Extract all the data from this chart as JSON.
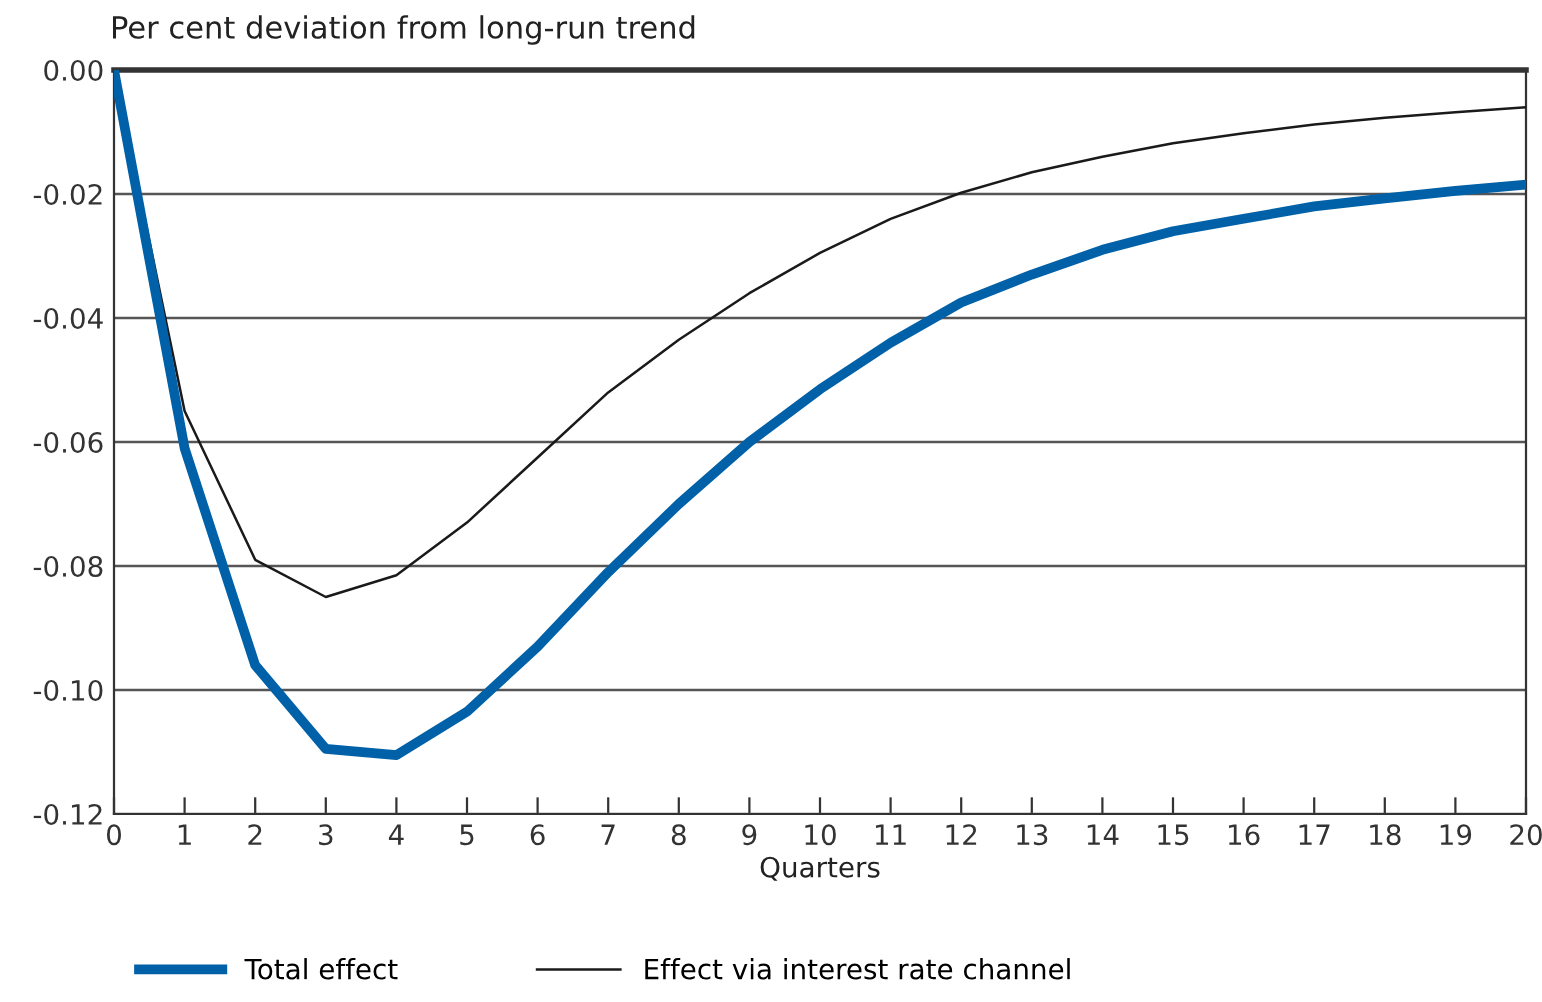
{
  "chart_data": {
    "type": "line",
    "subtitle": "Per cent deviation from long-run trend",
    "xlabel": "Quarters",
    "x": [
      0,
      1,
      2,
      3,
      4,
      5,
      6,
      7,
      8,
      9,
      10,
      11,
      12,
      13,
      14,
      15,
      16,
      17,
      18,
      19,
      20
    ],
    "series": [
      {
        "name": "Total effect",
        "color": "#0061a8",
        "values": [
          0,
          -0.061,
          -0.096,
          -0.1095,
          -0.1105,
          -0.1035,
          -0.093,
          -0.081,
          -0.07,
          -0.06,
          -0.0515,
          -0.044,
          -0.0375,
          -0.033,
          -0.029,
          -0.026,
          -0.024,
          -0.022,
          -0.0207,
          -0.0195,
          -0.0185
        ]
      },
      {
        "name": "Effect via interest rate channel",
        "color": "#1a1a1a",
        "values": [
          0,
          -0.055,
          -0.079,
          -0.085,
          -0.0815,
          -0.073,
          -0.0625,
          -0.052,
          -0.0435,
          -0.036,
          -0.0295,
          -0.024,
          -0.0198,
          -0.0165,
          -0.014,
          -0.0118,
          -0.0102,
          -0.0088,
          -0.0077,
          -0.0068,
          -0.006
        ]
      }
    ],
    "xlim": [
      0,
      20
    ],
    "xticks": [
      0,
      1,
      2,
      3,
      4,
      5,
      6,
      7,
      8,
      9,
      10,
      11,
      12,
      13,
      14,
      15,
      16,
      17,
      18,
      19,
      20
    ],
    "ylim": [
      -0.12,
      0
    ],
    "yticks": [
      {
        "value": -0.12,
        "label": "-0.12"
      },
      {
        "value": -0.1,
        "label": "-0.10"
      },
      {
        "value": -0.08,
        "label": "-0.08"
      },
      {
        "value": -0.06,
        "label": "-0.06"
      },
      {
        "value": -0.04,
        "label": "-0.04"
      },
      {
        "value": -0.02,
        "label": "-0.02"
      },
      {
        "value": 0,
        "label": "0.00"
      }
    ],
    "grid": "y",
    "legend": "bottom",
    "marker": "none",
    "line_style": "solid"
  }
}
